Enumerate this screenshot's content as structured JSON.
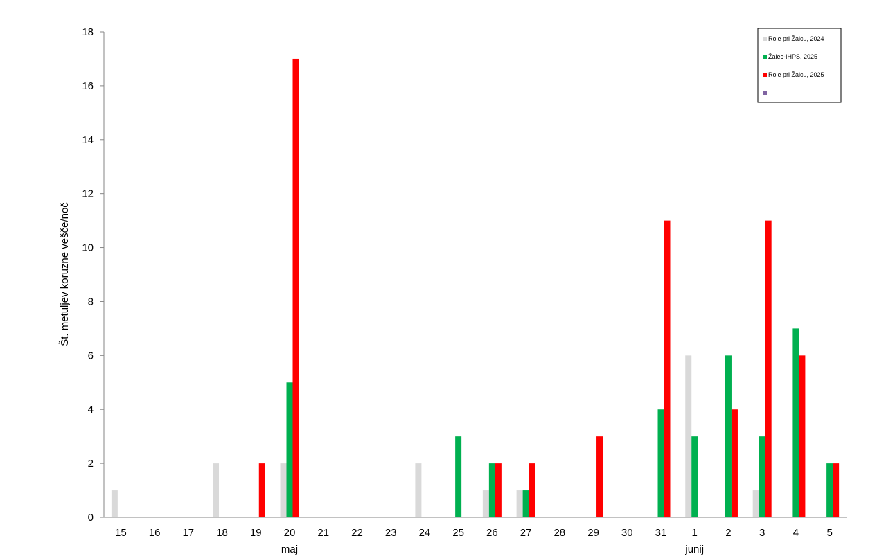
{
  "chart_data": {
    "type": "bar",
    "title": "",
    "xlabel": "",
    "ylabel": "Št. metuljev koruzne vešče/noč",
    "ylim": [
      0,
      18
    ],
    "yticks": [
      0,
      2,
      4,
      6,
      8,
      10,
      12,
      14,
      16,
      18
    ],
    "grid": false,
    "legend_position": "top-right",
    "categories": [
      "15",
      "16",
      "17",
      "18",
      "19",
      "20",
      "21",
      "22",
      "23",
      "24",
      "25",
      "26",
      "27",
      "28",
      "29",
      "30",
      "31",
      "1",
      "2",
      "3",
      "4",
      "5"
    ],
    "month_labels": [
      {
        "label": "maj",
        "at_category": "20"
      },
      {
        "label": "junij",
        "at_category": "1"
      }
    ],
    "series": [
      {
        "name": "Roje pri Žalcu, 2024",
        "color": "#d9d9d9",
        "values": [
          1,
          0,
          0,
          2,
          0,
          2,
          0,
          0,
          0,
          2,
          0,
          1,
          1,
          0,
          0,
          0,
          0,
          6,
          0,
          1,
          0,
          0
        ]
      },
      {
        "name": "Žalec-IHPS, 2025",
        "color": "#00b050",
        "values": [
          0,
          0,
          0,
          0,
          0,
          5,
          0,
          0,
          0,
          0,
          3,
          2,
          1,
          0,
          0,
          0,
          4,
          3,
          6,
          3,
          7,
          2
        ]
      },
      {
        "name": "Roje pri Žalcu, 2025",
        "color": "#ff0000",
        "values": [
          0,
          0,
          0,
          0,
          2,
          17,
          0,
          0,
          0,
          0,
          0,
          2,
          2,
          0,
          3,
          0,
          11,
          0,
          4,
          11,
          6,
          2
        ]
      },
      {
        "name": "",
        "color": "#8064a2",
        "values": [
          0,
          0,
          0,
          0,
          0,
          0,
          0,
          0,
          0,
          0,
          0,
          0,
          0,
          0,
          0,
          0,
          0,
          0,
          0,
          0,
          0,
          0
        ]
      }
    ]
  }
}
